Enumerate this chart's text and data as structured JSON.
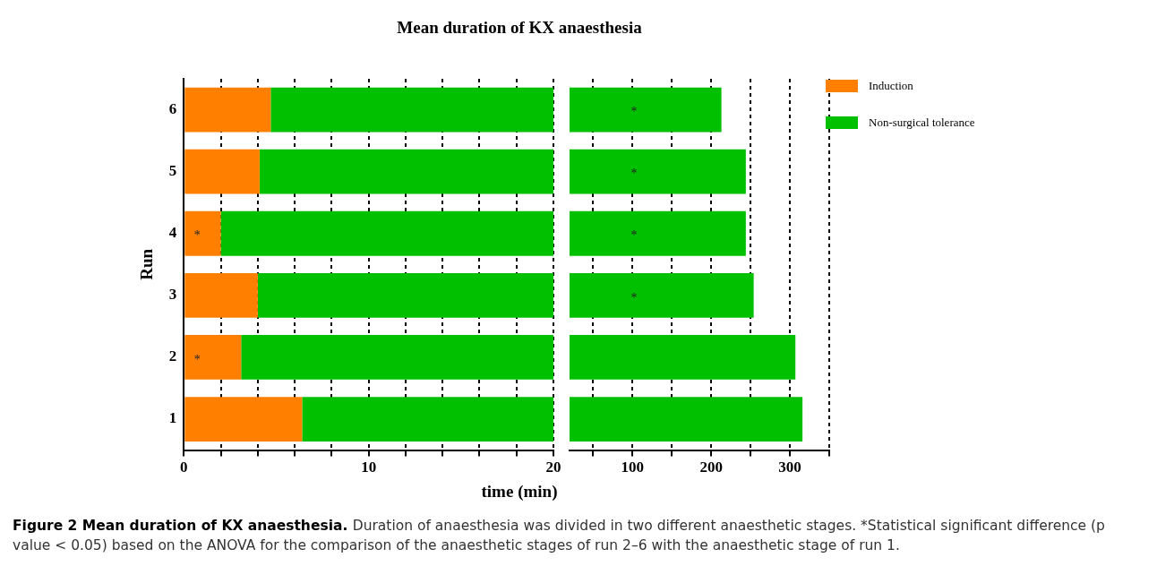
{
  "chart_data": [
    {
      "type": "bar",
      "orientation": "horizontal",
      "stacked": true,
      "title": "Mean duration of KX anaesthesia",
      "xlabel": "time (min)",
      "ylabel": "Run",
      "categories": [
        "6",
        "5",
        "4",
        "3",
        "2",
        "1"
      ],
      "series": [
        {
          "name": "Induction",
          "color": "#ff8000",
          "values": [
            4.7,
            4.1,
            2.0,
            4.0,
            3.1,
            6.4
          ]
        },
        {
          "name": "Non-surgical tolerance",
          "color": "#00c000",
          "values": [
            15.3,
            15.9,
            18.0,
            16.0,
            16.9,
            13.6
          ]
        }
      ],
      "xlim": [
        0,
        20
      ],
      "xticks": [
        0,
        {
          "value": 2,
          "label": null
        },
        {
          "value": 4,
          "label": null
        },
        {
          "value": 6,
          "label": null
        },
        {
          "value": 8,
          "label": null
        },
        10,
        {
          "value": 12,
          "label": null
        },
        {
          "value": 14,
          "label": null
        },
        {
          "value": 16,
          "label": null
        },
        {
          "value": 18,
          "label": null
        },
        20
      ],
      "grid": "x",
      "legend": "right",
      "annotations": [
        {
          "text": "*",
          "y": "4"
        },
        {
          "text": "*",
          "y": "2"
        },
        "Figure 2 Mean duration of KX anaesthesia.",
        "Duration of anaesthesia was divided in two different anaesthetic stages. *Statistical significant difference (p value < 0.05) based on the ANOVA for the comparison of the anaesthetic stages of run 2–6 with the anaesthetic stage of run 1."
      ]
    },
    {
      "type": "bar",
      "orientation": "horizontal",
      "categories": [
        "6",
        "5",
        "4",
        "3",
        "2",
        "1"
      ],
      "series": [
        {
          "color": "#00c000",
          "values": [
            213,
            244,
            244,
            254,
            307,
            316
          ]
        }
      ],
      "xlim": [
        20,
        350
      ],
      "xticks": [
        {
          "value": 50,
          "label": null
        },
        100,
        {
          "value": 150,
          "label": null
        },
        200,
        {
          "value": 250,
          "label": null
        },
        300,
        {
          "value": 350,
          "label": null
        }
      ],
      "grid": "x",
      "tick_labels": "x",
      "annotations": [
        "*",
        "*",
        "*",
        "*"
      ]
    }
  ]
}
